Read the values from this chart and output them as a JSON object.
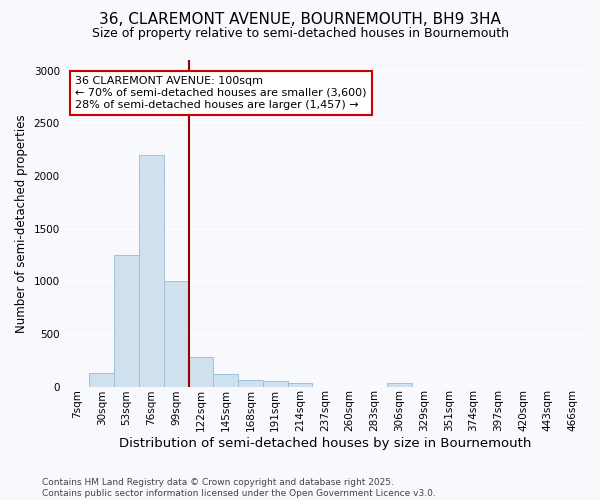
{
  "title": "36, CLAREMONT AVENUE, BOURNEMOUTH, BH9 3HA",
  "subtitle": "Size of property relative to semi-detached houses in Bournemouth",
  "xlabel": "Distribution of semi-detached houses by size in Bournemouth",
  "ylabel": "Number of semi-detached properties",
  "footnote": "Contains HM Land Registry data © Crown copyright and database right 2025.\nContains public sector information licensed under the Open Government Licence v3.0.",
  "bar_labels": [
    "7sqm",
    "30sqm",
    "53sqm",
    "76sqm",
    "99sqm",
    "122sqm",
    "145sqm",
    "168sqm",
    "191sqm",
    "214sqm",
    "237sqm",
    "260sqm",
    "283sqm",
    "306sqm",
    "329sqm",
    "351sqm",
    "374sqm",
    "397sqm",
    "420sqm",
    "443sqm",
    "466sqm"
  ],
  "bar_values": [
    0,
    130,
    1250,
    2200,
    1000,
    280,
    115,
    60,
    55,
    30,
    0,
    0,
    0,
    30,
    0,
    0,
    0,
    0,
    0,
    0,
    0
  ],
  "bar_color": "#cfe0ef",
  "bar_edgecolor": "#a0c0d8",
  "ylim": [
    0,
    3100
  ],
  "yticks": [
    0,
    500,
    1000,
    1500,
    2000,
    2500,
    3000
  ],
  "property_bin_index": 4,
  "vline_color": "#990000",
  "annotation_text": "36 CLAREMONT AVENUE: 100sqm\n← 70% of semi-detached houses are smaller (3,600)\n28% of semi-detached houses are larger (1,457) →",
  "annotation_box_color": "#cc0000",
  "annotation_bg": "#ffffff",
  "background_color": "#f7f9fc",
  "grid_color": "#ffffff",
  "title_fontsize": 11,
  "subtitle_fontsize": 9,
  "xlabel_fontsize": 9.5,
  "ylabel_fontsize": 8.5,
  "tick_fontsize": 7.5,
  "footnote_fontsize": 6.5
}
